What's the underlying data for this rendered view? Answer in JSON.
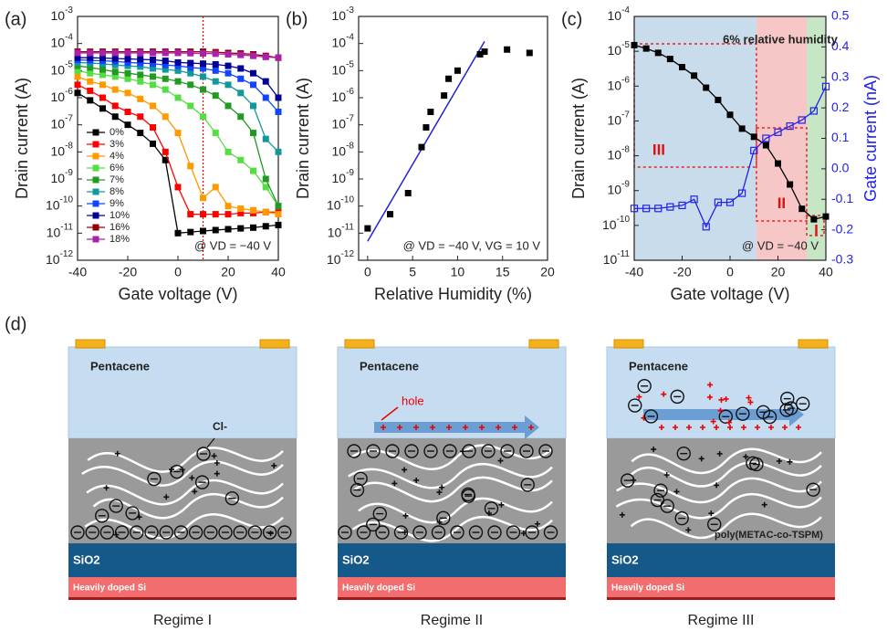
{
  "chart_data": [
    {
      "type": "line",
      "panel_label": "(a)",
      "xlabel": "Gate voltage (V)",
      "ylabel": "Drain current (A)",
      "x": [
        -40,
        -35,
        -30,
        -25,
        -20,
        -15,
        -10,
        -5,
        0,
        5,
        10,
        15,
        20,
        25,
        30,
        35,
        40
      ],
      "xlim": [
        -40,
        40
      ],
      "xticks": [
        -40,
        -20,
        0,
        20,
        40
      ],
      "ylim": [
        1e-12,
        0.001
      ],
      "yscale": "log",
      "yticks": [
        {
          "value": 1e-12,
          "label": "10-12"
        },
        {
          "value": 1e-11,
          "label": "10-11"
        },
        {
          "value": 1e-10,
          "label": "10-10"
        },
        {
          "value": 1e-09,
          "label": "10-9"
        },
        {
          "value": 1e-08,
          "label": "10-8"
        },
        {
          "value": 1e-07,
          "label": "10-7"
        },
        {
          "value": 1e-06,
          "label": "10-6"
        },
        {
          "value": 1e-05,
          "label": "10-5"
        },
        {
          "value": 0.0001,
          "label": "10-4"
        },
        {
          "value": 0.001,
          "label": "10-3"
        }
      ],
      "legend": "lower left",
      "vline": {
        "x": 10,
        "color": "#ff0000"
      },
      "annotation": "@ VD = −40 V",
      "series": [
        {
          "name": "0%",
          "color": "#000000",
          "values": [
            1.5e-06,
            8e-07,
            4e-07,
            2e-07,
            1e-07,
            5e-08,
            2e-08,
            5e-09,
            1e-11,
            1.1e-11,
            1.2e-11,
            1.3e-11,
            1.4e-11,
            1.5e-11,
            1.6e-11,
            1.8e-11,
            2e-11
          ]
        },
        {
          "name": "3%",
          "color": "#ff0000",
          "values": [
            3e-06,
            1.8e-06,
            1e-06,
            5e-07,
            3e-07,
            2e-07,
            8e-08,
            1e-08,
            5e-10,
            5e-11,
            5e-11,
            5e-11,
            5e-11,
            5.5e-11,
            5.5e-11,
            6e-11,
            6e-11
          ]
        },
        {
          "name": "4%",
          "color": "#ff9900",
          "values": [
            6e-06,
            4e-06,
            3e-06,
            2e-06,
            1.5e-06,
            9e-07,
            5e-07,
            2e-07,
            5e-08,
            3e-09,
            2e-10,
            5e-10,
            1e-10,
            8e-11,
            7e-11,
            6e-11,
            5e-11
          ]
        },
        {
          "name": "6%",
          "color": "#55dd44",
          "values": [
            1e-05,
            8e-06,
            7e-06,
            6e-06,
            5e-06,
            4e-06,
            3e-06,
            2e-06,
            1e-06,
            5e-07,
            2e-07,
            5e-08,
            1e-08,
            5e-09,
            2e-09,
            5e-10,
            1e-10
          ]
        },
        {
          "name": "7%",
          "color": "#229922",
          "values": [
            1.5e-05,
            1.3e-05,
            1.1e-05,
            9e-06,
            8e-06,
            7e-06,
            6e-06,
            5e-06,
            4e-06,
            3e-06,
            2e-06,
            1.2e-06,
            5e-07,
            2e-07,
            5e-08,
            1e-09,
            1e-10
          ]
        },
        {
          "name": "8%",
          "color": "#119999",
          "values": [
            2e-05,
            1.9e-05,
            1.8e-05,
            1.6e-05,
            1.5e-05,
            1.4e-05,
            1.2e-05,
            1.1e-05,
            1e-05,
            8e-06,
            6e-06,
            4e-06,
            3e-06,
            1.5e-06,
            5e-07,
            3e-08,
            1e-08
          ]
        },
        {
          "name": "9%",
          "color": "#1144ff",
          "values": [
            2.5e-05,
            2.4e-05,
            2.3e-05,
            2.2e-05,
            2e-05,
            1.9e-05,
            1.8e-05,
            1.6e-05,
            1.5e-05,
            1.3e-05,
            1.2e-05,
            1e-05,
            8e-06,
            5e-06,
            3e-06,
            1e-06,
            3e-07
          ]
        },
        {
          "name": "10%",
          "color": "#000099",
          "values": [
            3e-05,
            3e-05,
            2.9e-05,
            2.8e-05,
            2.7e-05,
            2.6e-05,
            2.5e-05,
            2.3e-05,
            2e-05,
            1.9e-05,
            1.8e-05,
            1.7e-05,
            1.5e-05,
            1.2e-05,
            8e-06,
            4e-06,
            1e-06
          ]
        },
        {
          "name": "16%",
          "color": "#990000",
          "values": [
            5e-05,
            5e-05,
            5e-05,
            5e-05,
            5e-05,
            5e-05,
            5e-05,
            5e-05,
            5e-05,
            5e-05,
            5e-05,
            4.8e-05,
            4.5e-05,
            4.3e-05,
            4e-05,
            3.5e-05,
            3e-05
          ]
        },
        {
          "name": "18%",
          "color": "#aa22aa",
          "values": [
            4.5e-05,
            4.5e-05,
            4.5e-05,
            4.5e-05,
            4.5e-05,
            4.5e-05,
            4.5e-05,
            4.5e-05,
            4.5e-05,
            4.4e-05,
            4.3e-05,
            4.2e-05,
            4e-05,
            3.8e-05,
            3.5e-05,
            3.2e-05,
            3e-05
          ]
        }
      ]
    },
    {
      "type": "scatter",
      "panel_label": "(b)",
      "xlabel": "Relative Humidity (%)",
      "ylabel": "Drain current (A)",
      "x": [
        0,
        2.5,
        4.5,
        6,
        6.5,
        7,
        8.5,
        9,
        10,
        12.5,
        13,
        15.5,
        18
      ],
      "values": [
        1.5e-11,
        5e-11,
        3e-10,
        1.5e-08,
        8e-08,
        3e-07,
        1.2e-06,
        5e-06,
        1e-05,
        4e-05,
        5e-05,
        6e-05,
        4.5e-05
      ],
      "color": "#000000",
      "xlim": [
        -1,
        20
      ],
      "xticks": [
        0,
        5,
        10,
        15,
        20
      ],
      "ylim": [
        1e-12,
        0.001
      ],
      "yscale": "log",
      "yticks": [
        {
          "value": 1e-12,
          "label": "10-12"
        },
        {
          "value": 1e-11,
          "label": "10-11"
        },
        {
          "value": 1e-10,
          "label": "10-10"
        },
        {
          "value": 1e-09,
          "label": "10-9"
        },
        {
          "value": 1e-08,
          "label": "10-8"
        },
        {
          "value": 1e-07,
          "label": "10-7"
        },
        {
          "value": 1e-06,
          "label": "10-6"
        },
        {
          "value": 1e-05,
          "label": "10-5"
        },
        {
          "value": 0.0001,
          "label": "10-4"
        },
        {
          "value": 0.001,
          "label": "10-3"
        }
      ],
      "fit_line": {
        "x": [
          0,
          13
        ],
        "values": [
          5e-12,
          0.00012
        ],
        "color": "#2222dd"
      },
      "annotation": "@ VD = −40 V, VG = 10 V"
    },
    {
      "type": "line",
      "panel_label": "(c)",
      "xlabel": "Gate voltage (V)",
      "ylabel": "Drain current (A)",
      "y2label": "Gate current (nA)",
      "subtitle": "6% relative humidity",
      "annotation": "@ VD = −40 V",
      "x": [
        -40,
        -35,
        -30,
        -25,
        -20,
        -15,
        -10,
        -5,
        0,
        5,
        10,
        15,
        20,
        25,
        30,
        35,
        40
      ],
      "xlim": [
        -40,
        40
      ],
      "xticks": [
        -40,
        -20,
        0,
        20,
        40
      ],
      "ylim": [
        1e-11,
        0.0001
      ],
      "yscale": "log",
      "yticks": [
        {
          "value": 1e-11,
          "label": "10-11"
        },
        {
          "value": 1e-10,
          "label": "10-10"
        },
        {
          "value": 1e-09,
          "label": "10-9"
        },
        {
          "value": 1e-08,
          "label": "10-8"
        },
        {
          "value": 1e-07,
          "label": "10-7"
        },
        {
          "value": 1e-06,
          "label": "10-6"
        },
        {
          "value": 1e-05,
          "label": "10-5"
        },
        {
          "value": 0.0001,
          "label": "10-4"
        }
      ],
      "y2lim": [
        -0.3,
        0.5
      ],
      "y2ticks": [
        -0.3,
        -0.2,
        -0.1,
        {
          "value": 0,
          "label": "0.0"
        },
        0.1,
        0.2,
        0.3,
        0.4,
        0.5
      ],
      "y2color": "#2222ee",
      "regions": [
        {
          "from": -40,
          "to": 11,
          "color": "#c9dcec",
          "label": "III"
        },
        {
          "from": 11,
          "to": 32,
          "color": "#f7c6c6",
          "label": "II"
        },
        {
          "from": 32,
          "to": 40,
          "color": "#c6e6c6",
          "label": "I"
        }
      ],
      "series": [
        {
          "color": "#000000",
          "marker_fill": "filled",
          "values": [
            1.5e-05,
            1.2e-05,
            9e-06,
            6e-06,
            3.5e-06,
            2e-06,
            9e-07,
            4e-07,
            1.5e-07,
            6e-08,
            3.5e-08,
            2e-08,
            6e-09,
            1.5e-09,
            3e-10,
            1.5e-10,
            1.8e-10
          ]
        },
        {
          "color": "#2222ee",
          "marker_fill": "open",
          "axis": "y2",
          "values": [
            -0.13,
            -0.13,
            -0.13,
            -0.125,
            -0.12,
            -0.1,
            -0.19,
            -0.11,
            -0.11,
            -0.08,
            0.06,
            0.1,
            0.12,
            0.14,
            0.16,
            0.19,
            0.27
          ]
        }
      ]
    }
  ],
  "diagram": {
    "panel_label": "(d)",
    "regimes": [
      {
        "title": "Regime I",
        "semiconductor": "Pentacene",
        "dielectric": "SiO2",
        "substrate": "Heavily doped Si",
        "ion_label": "Cl-"
      },
      {
        "title": "Regime II",
        "semiconductor": "Pentacene",
        "dielectric": "SiO2",
        "substrate": "Heavily doped Si",
        "carrier_label": "hole"
      },
      {
        "title": "Regime III",
        "semiconductor": "Pentacene",
        "dielectric": "SiO2",
        "substrate": "Heavily doped Si",
        "polymer_label": "poly(METAC-co-TSPM)"
      }
    ]
  }
}
